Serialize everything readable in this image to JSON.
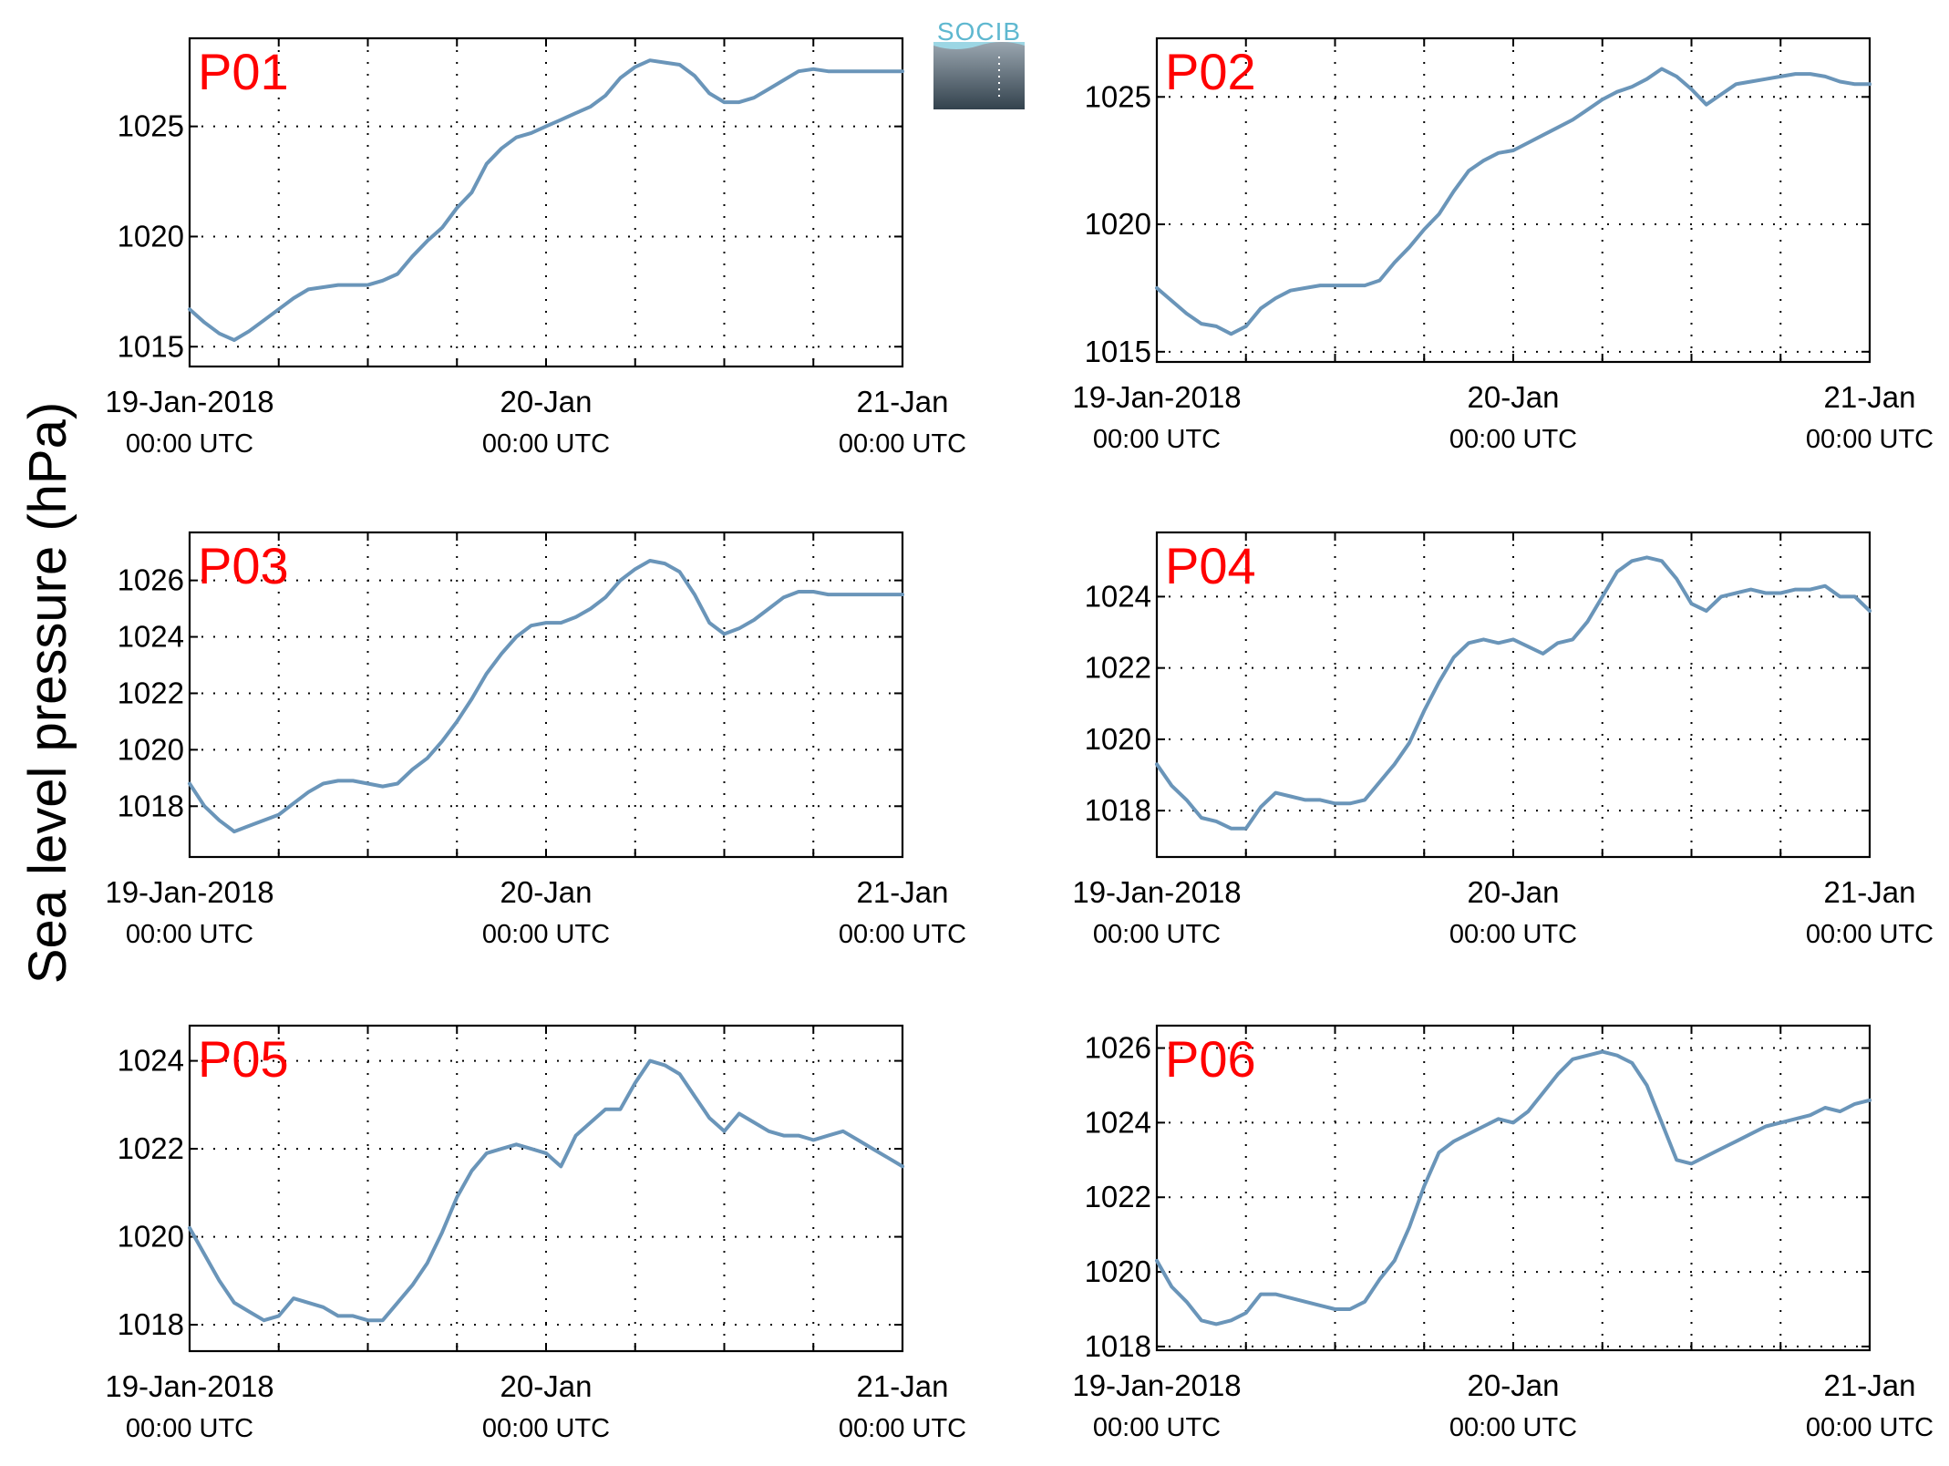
{
  "figure": {
    "ylabel": "Sea level pressure (hPa)",
    "logo_text": "SOCIB",
    "line_color": "#6a95b9",
    "label_color": "#ff0000"
  },
  "chart_data": [
    {
      "type": "line",
      "label": "P01",
      "x_ticks": [
        {
          "main": "19-Jan-2018",
          "sub": "00:00 UTC"
        },
        {
          "main": "20-Jan",
          "sub": "00:00 UTC"
        },
        {
          "main": "21-Jan",
          "sub": "00:00 UTC"
        }
      ],
      "xlim": [
        "2018-01-19 00:00",
        "2018-01-21 00:00"
      ],
      "ylim": [
        1014.1,
        1029.0
      ],
      "yticks": [
        1015,
        1020,
        1025
      ],
      "series": [
        {
          "x_hours": [
            0,
            1,
            2,
            3,
            4,
            5,
            6,
            7,
            8,
            9,
            10,
            11,
            12,
            13,
            14,
            15,
            16,
            17,
            18,
            19,
            20,
            21,
            22,
            23,
            24,
            25,
            26,
            27,
            28,
            29,
            30,
            31,
            32,
            33,
            34,
            35,
            36,
            37,
            38,
            39,
            40,
            41,
            42,
            43,
            44,
            45,
            46,
            47,
            48
          ],
          "values": [
            1016.7,
            1016.1,
            1015.6,
            1015.3,
            1015.7,
            1016.2,
            1016.7,
            1017.2,
            1017.6,
            1017.7,
            1017.8,
            1017.8,
            1017.8,
            1018.0,
            1018.3,
            1019.1,
            1019.8,
            1020.4,
            1021.3,
            1022.0,
            1023.3,
            1024.0,
            1024.5,
            1024.7,
            1025.0,
            1025.3,
            1025.6,
            1025.9,
            1026.4,
            1027.2,
            1027.7,
            1028.0,
            1027.9,
            1027.8,
            1027.3,
            1026.5,
            1026.1,
            1026.1,
            1026.3,
            1026.7,
            1027.1,
            1027.5,
            1027.6,
            1027.5,
            1027.5,
            1027.5,
            1027.5,
            1027.5,
            1027.5
          ]
        }
      ]
    },
    {
      "type": "line",
      "label": "P02",
      "x_ticks": [
        {
          "main": "19-Jan-2018",
          "sub": "00:00 UTC"
        },
        {
          "main": "20-Jan",
          "sub": "00:00 UTC"
        },
        {
          "main": "21-Jan",
          "sub": "00:00 UTC"
        }
      ],
      "xlim": [
        "2018-01-19 00:00",
        "2018-01-21 00:00"
      ],
      "ylim": [
        1014.6,
        1027.3
      ],
      "yticks": [
        1015,
        1020,
        1025
      ],
      "series": [
        {
          "x_hours": [
            0,
            1,
            2,
            3,
            4,
            5,
            6,
            7,
            8,
            9,
            10,
            11,
            12,
            13,
            14,
            15,
            16,
            17,
            18,
            19,
            20,
            21,
            22,
            23,
            24,
            25,
            26,
            27,
            28,
            29,
            30,
            31,
            32,
            33,
            34,
            35,
            36,
            37,
            38,
            39,
            40,
            41,
            42,
            43,
            44,
            45,
            46,
            47,
            48
          ],
          "values": [
            1017.5,
            1017.0,
            1016.5,
            1016.1,
            1016.0,
            1015.7,
            1016.0,
            1016.7,
            1017.1,
            1017.4,
            1017.5,
            1017.6,
            1017.6,
            1017.6,
            1017.6,
            1017.8,
            1018.5,
            1019.1,
            1019.8,
            1020.4,
            1021.3,
            1022.1,
            1022.5,
            1022.8,
            1022.9,
            1023.2,
            1023.5,
            1023.8,
            1024.1,
            1024.5,
            1024.9,
            1025.2,
            1025.4,
            1025.7,
            1026.1,
            1025.8,
            1025.3,
            1024.7,
            1025.1,
            1025.5,
            1025.6,
            1025.7,
            1025.8,
            1025.9,
            1025.9,
            1025.8,
            1025.6,
            1025.5,
            1025.5
          ]
        }
      ]
    },
    {
      "type": "line",
      "label": "P03",
      "x_ticks": [
        {
          "main": "19-Jan-2018",
          "sub": "00:00 UTC"
        },
        {
          "main": "20-Jan",
          "sub": "00:00 UTC"
        },
        {
          "main": "21-Jan",
          "sub": "00:00 UTC"
        }
      ],
      "xlim": [
        "2018-01-19 00:00",
        "2018-01-21 00:00"
      ],
      "ylim": [
        1016.2,
        1027.7
      ],
      "yticks": [
        1018,
        1020,
        1022,
        1024,
        1026
      ],
      "series": [
        {
          "x_hours": [
            0,
            1,
            2,
            3,
            4,
            5,
            6,
            7,
            8,
            9,
            10,
            11,
            12,
            13,
            14,
            15,
            16,
            17,
            18,
            19,
            20,
            21,
            22,
            23,
            24,
            25,
            26,
            27,
            28,
            29,
            30,
            31,
            32,
            33,
            34,
            35,
            36,
            37,
            38,
            39,
            40,
            41,
            42,
            43,
            44,
            45,
            46,
            47,
            48
          ],
          "values": [
            1018.8,
            1018.0,
            1017.5,
            1017.1,
            1017.3,
            1017.5,
            1017.7,
            1018.1,
            1018.5,
            1018.8,
            1018.9,
            1018.9,
            1018.8,
            1018.7,
            1018.8,
            1019.3,
            1019.7,
            1020.3,
            1021.0,
            1021.8,
            1022.7,
            1023.4,
            1024.0,
            1024.4,
            1024.5,
            1024.5,
            1024.7,
            1025.0,
            1025.4,
            1026.0,
            1026.4,
            1026.7,
            1026.6,
            1026.3,
            1025.5,
            1024.5,
            1024.1,
            1024.3,
            1024.6,
            1025.0,
            1025.4,
            1025.6,
            1025.6,
            1025.5,
            1025.5,
            1025.5,
            1025.5,
            1025.5,
            1025.5
          ]
        }
      ]
    },
    {
      "type": "line",
      "label": "P04",
      "x_ticks": [
        {
          "main": "19-Jan-2018",
          "sub": "00:00 UTC"
        },
        {
          "main": "20-Jan",
          "sub": "00:00 UTC"
        },
        {
          "main": "21-Jan",
          "sub": "00:00 UTC"
        }
      ],
      "xlim": [
        "2018-01-19 00:00",
        "2018-01-21 00:00"
      ],
      "ylim": [
        1016.7,
        1025.8
      ],
      "yticks": [
        1018,
        1020,
        1022,
        1024
      ],
      "series": [
        {
          "x_hours": [
            0,
            1,
            2,
            3,
            4,
            5,
            6,
            7,
            8,
            9,
            10,
            11,
            12,
            13,
            14,
            15,
            16,
            17,
            18,
            19,
            20,
            21,
            22,
            23,
            24,
            25,
            26,
            27,
            28,
            29,
            30,
            31,
            32,
            33,
            34,
            35,
            36,
            37,
            38,
            39,
            40,
            41,
            42,
            43,
            44,
            45,
            46,
            47,
            48
          ],
          "values": [
            1019.3,
            1018.7,
            1018.3,
            1017.8,
            1017.7,
            1017.5,
            1017.5,
            1018.1,
            1018.5,
            1018.4,
            1018.3,
            1018.3,
            1018.2,
            1018.2,
            1018.3,
            1018.8,
            1019.3,
            1019.9,
            1020.8,
            1021.6,
            1022.3,
            1022.7,
            1022.8,
            1022.7,
            1022.8,
            1022.6,
            1022.4,
            1022.7,
            1022.8,
            1023.3,
            1024.0,
            1024.7,
            1025.0,
            1025.1,
            1025.0,
            1024.5,
            1023.8,
            1023.6,
            1024.0,
            1024.1,
            1024.2,
            1024.1,
            1024.1,
            1024.2,
            1024.2,
            1024.3,
            1024.0,
            1024.0,
            1023.6
          ]
        }
      ]
    },
    {
      "type": "line",
      "label": "P05",
      "x_ticks": [
        {
          "main": "19-Jan-2018",
          "sub": "00:00 UTC"
        },
        {
          "main": "20-Jan",
          "sub": "00:00 UTC"
        },
        {
          "main": "21-Jan",
          "sub": "00:00 UTC"
        }
      ],
      "xlim": [
        "2018-01-19 00:00",
        "2018-01-21 00:00"
      ],
      "ylim": [
        1017.4,
        1024.8
      ],
      "yticks": [
        1018,
        1020,
        1022,
        1024
      ],
      "series": [
        {
          "x_hours": [
            0,
            1,
            2,
            3,
            4,
            5,
            6,
            7,
            8,
            9,
            10,
            11,
            12,
            13,
            14,
            15,
            16,
            17,
            18,
            19,
            20,
            21,
            22,
            23,
            24,
            25,
            26,
            27,
            28,
            29,
            30,
            31,
            32,
            33,
            34,
            35,
            36,
            37,
            38,
            39,
            40,
            41,
            42,
            43,
            44,
            45,
            46,
            47,
            48
          ],
          "values": [
            1020.2,
            1019.6,
            1019.0,
            1018.5,
            1018.3,
            1018.1,
            1018.2,
            1018.6,
            1018.5,
            1018.4,
            1018.2,
            1018.2,
            1018.1,
            1018.1,
            1018.5,
            1018.9,
            1019.4,
            1020.1,
            1020.9,
            1021.5,
            1021.9,
            1022.0,
            1022.1,
            1022.0,
            1021.9,
            1021.6,
            1022.3,
            1022.6,
            1022.9,
            1022.9,
            1023.5,
            1024.0,
            1023.9,
            1023.7,
            1023.2,
            1022.7,
            1022.4,
            1022.8,
            1022.6,
            1022.4,
            1022.3,
            1022.3,
            1022.2,
            1022.3,
            1022.4,
            1022.2,
            1022.0,
            1021.8,
            1021.6
          ]
        }
      ]
    },
    {
      "type": "line",
      "label": "P06",
      "x_ticks": [
        {
          "main": "19-Jan-2018",
          "sub": "00:00 UTC"
        },
        {
          "main": "20-Jan",
          "sub": "00:00 UTC"
        },
        {
          "main": "21-Jan",
          "sub": "00:00 UTC"
        }
      ],
      "xlim": [
        "2018-01-19 00:00",
        "2018-01-21 00:00"
      ],
      "ylim": [
        1017.9,
        1026.6
      ],
      "yticks": [
        1018,
        1020,
        1022,
        1024,
        1026
      ],
      "series": [
        {
          "x_hours": [
            0,
            1,
            2,
            3,
            4,
            5,
            6,
            7,
            8,
            9,
            10,
            11,
            12,
            13,
            14,
            15,
            16,
            17,
            18,
            19,
            20,
            21,
            22,
            23,
            24,
            25,
            26,
            27,
            28,
            29,
            30,
            31,
            32,
            33,
            34,
            35,
            36,
            37,
            38,
            39,
            40,
            41,
            42,
            43,
            44,
            45,
            46,
            47,
            48
          ],
          "values": [
            1020.3,
            1019.6,
            1019.2,
            1018.7,
            1018.6,
            1018.7,
            1018.9,
            1019.4,
            1019.4,
            1019.3,
            1019.2,
            1019.1,
            1019.0,
            1019.0,
            1019.2,
            1019.8,
            1020.3,
            1021.2,
            1022.3,
            1023.2,
            1023.5,
            1023.7,
            1023.9,
            1024.1,
            1024.0,
            1024.3,
            1024.8,
            1025.3,
            1025.7,
            1025.8,
            1025.9,
            1025.8,
            1025.6,
            1025.0,
            1024.0,
            1023.0,
            1022.9,
            1023.1,
            1023.3,
            1023.5,
            1023.7,
            1023.9,
            1024.0,
            1024.1,
            1024.2,
            1024.4,
            1024.3,
            1024.5,
            1024.6
          ]
        }
      ]
    }
  ]
}
